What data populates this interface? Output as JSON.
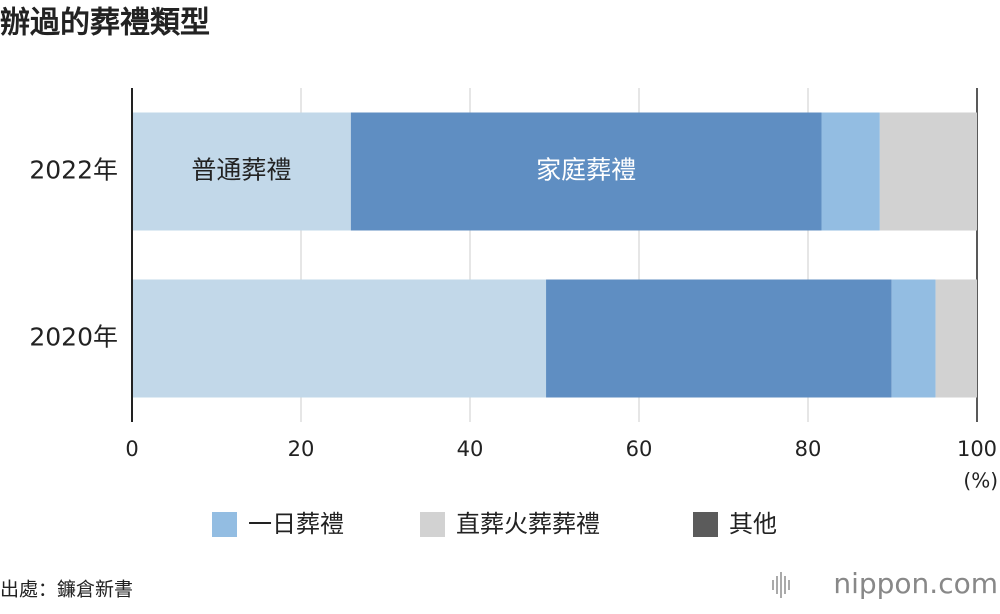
{
  "chart_data": {
    "type": "stacked_barh",
    "title": "辦過的葬禮類型",
    "categories": [
      "2022年",
      "2020年"
    ],
    "series": [
      {
        "name": "普通葬禮",
        "color": "#c2d8e9",
        "values": [
          25.9,
          49.0
        ],
        "label_in_bar": true,
        "label_color": "#222222"
      },
      {
        "name": "家庭葬禮",
        "color": "#5f8ec2",
        "values": [
          55.7,
          40.9
        ],
        "label_in_bar": true,
        "label_color": "#ffffff"
      },
      {
        "name": "一日葬禮",
        "color": "#93bde2",
        "values": [
          6.9,
          5.2
        ],
        "label_in_bar": false
      },
      {
        "name": "直葬火葬葬禮",
        "color": "#d2d2d2",
        "values": [
          11.5,
          4.9
        ],
        "label_in_bar": false
      },
      {
        "name": "其他",
        "color": "#5b5b5b",
        "values": [
          0,
          0
        ],
        "label_in_bar": false
      }
    ],
    "xlim": [
      0,
      100
    ],
    "xticks": [
      0,
      20,
      40,
      60,
      80,
      100
    ],
    "x_unit": "(%)",
    "grid": true
  },
  "source": "出處：鐮倉新書",
  "logo": "nippon.com"
}
